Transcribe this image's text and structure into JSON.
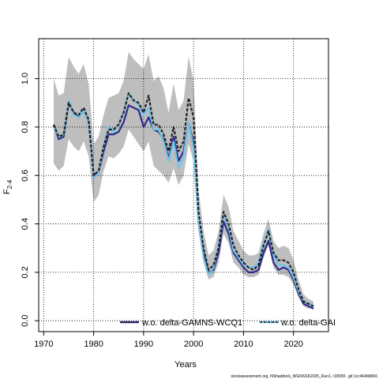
{
  "chart_data": {
    "type": "line",
    "xlabel": "Years",
    "ylabel_main": "F",
    "ylabel_sub": "2-4",
    "xlim": [
      1969,
      2027
    ],
    "ylim": [
      -0.045,
      1.165
    ],
    "xticks": [
      "1970",
      "1980",
      "1990",
      "2000",
      "2010",
      "2020"
    ],
    "yticks": [
      "0.0",
      "0.2",
      "0.4",
      "0.6",
      "0.8",
      "1.0"
    ],
    "grid": true,
    "legend_position": "bottom-right",
    "footer": "stockassessment.org, NShaddock_WGNSSK2025_Run1, r18099 , git:1cc464b8066",
    "colors": {
      "band": "#bebebe",
      "series1": "#2e2a8a",
      "series2": "#222222",
      "series3": "#6ec5e8"
    },
    "series": [
      {
        "name": "w.o. delta-GAMNS-WCQ1",
        "x": [
          1972,
          1973,
          1974,
          1975,
          1976,
          1977,
          1978,
          1979,
          1980,
          1981,
          1982,
          1983,
          1984,
          1985,
          1986,
          1987,
          1988,
          1989,
          1990,
          1991,
          1992,
          1993,
          1994,
          1995,
          1996,
          1997,
          1998,
          1999,
          2000,
          2001,
          2002,
          2003,
          2004,
          2005,
          2006,
          2007,
          2008,
          2009,
          2010,
          2011,
          2012,
          2013,
          2014,
          2015,
          2016,
          2017,
          2018,
          2019,
          2020,
          2021,
          2022,
          2023,
          2024
        ],
        "values": [
          0.81,
          0.75,
          0.76,
          0.9,
          0.86,
          0.84,
          0.87,
          0.82,
          0.6,
          0.61,
          0.7,
          0.77,
          0.77,
          0.78,
          0.82,
          0.89,
          0.88,
          0.87,
          0.8,
          0.84,
          0.79,
          0.78,
          0.75,
          0.67,
          0.76,
          0.66,
          0.7,
          0.82,
          0.73,
          0.4,
          0.28,
          0.2,
          0.21,
          0.28,
          0.41,
          0.36,
          0.28,
          0.25,
          0.22,
          0.2,
          0.2,
          0.21,
          0.28,
          0.33,
          0.24,
          0.21,
          0.22,
          0.21,
          0.17,
          0.11,
          0.07,
          0.06,
          0.05
        ]
      },
      {
        "name": "",
        "x": [
          1972,
          1973,
          1974,
          1975,
          1976,
          1977,
          1978,
          1979,
          1980,
          1981,
          1982,
          1983,
          1984,
          1985,
          1986,
          1987,
          1988,
          1989,
          1990,
          1991,
          1992,
          1993,
          1994,
          1995,
          1996,
          1997,
          1998,
          1999,
          2000,
          2001,
          2002,
          2003,
          2004,
          2005,
          2006,
          2007,
          2008,
          2009,
          2010,
          2011,
          2012,
          2013,
          2014,
          2015,
          2016,
          2017,
          2018,
          2019,
          2020,
          2021,
          2022,
          2023,
          2024
        ],
        "values": [
          0.81,
          0.76,
          0.77,
          0.9,
          0.86,
          0.85,
          0.88,
          0.83,
          0.6,
          0.62,
          0.72,
          0.79,
          0.79,
          0.81,
          0.86,
          0.94,
          0.91,
          0.9,
          0.86,
          0.93,
          0.81,
          0.81,
          0.77,
          0.7,
          0.8,
          0.7,
          0.74,
          0.92,
          0.84,
          0.45,
          0.3,
          0.21,
          0.23,
          0.3,
          0.45,
          0.4,
          0.31,
          0.27,
          0.24,
          0.22,
          0.21,
          0.23,
          0.31,
          0.37,
          0.28,
          0.25,
          0.25,
          0.24,
          0.2,
          0.13,
          0.08,
          0.07,
          0.06
        ]
      },
      {
        "name": "w.o. delta-GAI",
        "x": [
          1972,
          1973,
          1974,
          1975,
          1976,
          1977,
          1978,
          1979,
          1980,
          1981,
          1982,
          1983,
          1984,
          1985,
          1986,
          1987,
          1988,
          1989,
          1990,
          1991,
          1992,
          1993,
          1994,
          1995,
          1996,
          1997,
          1998,
          1999,
          2000,
          2001,
          2002,
          2003,
          2004,
          2005,
          2006,
          2007,
          2008,
          2009,
          2010,
          2011,
          2012,
          2013,
          2014,
          2015,
          2016,
          2017,
          2018,
          2019,
          2020,
          2021,
          2022,
          2023,
          2024
        ],
        "values": [
          0.8,
          0.76,
          0.77,
          0.91,
          0.85,
          0.84,
          0.87,
          0.82,
          0.59,
          0.61,
          0.72,
          0.8,
          0.78,
          0.81,
          0.86,
          0.94,
          0.91,
          0.89,
          0.85,
          0.88,
          0.79,
          0.79,
          0.74,
          0.66,
          0.74,
          0.63,
          0.68,
          0.82,
          0.71,
          0.4,
          0.26,
          0.19,
          0.22,
          0.31,
          0.44,
          0.39,
          0.29,
          0.26,
          0.23,
          0.22,
          0.22,
          0.24,
          0.32,
          0.38,
          0.27,
          0.23,
          0.23,
          0.22,
          0.18,
          0.12,
          0.08,
          0.07,
          0.06
        ]
      }
    ],
    "band": {
      "x": [
        1972,
        1973,
        1974,
        1975,
        1976,
        1977,
        1978,
        1979,
        1980,
        1981,
        1982,
        1983,
        1984,
        1985,
        1986,
        1987,
        1988,
        1989,
        1990,
        1991,
        1992,
        1993,
        1994,
        1995,
        1996,
        1997,
        1998,
        1999,
        2000,
        2001,
        2002,
        2003,
        2004,
        2005,
        2006,
        2007,
        2008,
        2009,
        2010,
        2011,
        2012,
        2013,
        2014,
        2015,
        2016,
        2017,
        2018,
        2019,
        2020,
        2021,
        2022,
        2023,
        2024
      ],
      "lower": [
        0.65,
        0.62,
        0.64,
        0.75,
        0.72,
        0.7,
        0.74,
        0.68,
        0.49,
        0.52,
        0.62,
        0.68,
        0.67,
        0.69,
        0.72,
        0.79,
        0.76,
        0.73,
        0.7,
        0.74,
        0.64,
        0.62,
        0.6,
        0.57,
        0.63,
        0.56,
        0.6,
        0.73,
        0.66,
        0.37,
        0.24,
        0.17,
        0.18,
        0.24,
        0.36,
        0.32,
        0.24,
        0.22,
        0.19,
        0.18,
        0.18,
        0.19,
        0.26,
        0.31,
        0.22,
        0.19,
        0.19,
        0.18,
        0.15,
        0.1,
        0.06,
        0.05,
        0.05
      ],
      "upper": [
        1.0,
        0.93,
        0.94,
        1.09,
        1.05,
        1.02,
        1.06,
        0.98,
        0.73,
        0.76,
        0.85,
        0.92,
        0.93,
        0.94,
        0.99,
        1.11,
        1.08,
        1.06,
        1.04,
        1.1,
        0.99,
        1.01,
        0.96,
        0.86,
        0.98,
        0.87,
        0.91,
        1.09,
        0.99,
        0.54,
        0.37,
        0.27,
        0.29,
        0.37,
        0.52,
        0.47,
        0.37,
        0.33,
        0.29,
        0.27,
        0.27,
        0.28,
        0.36,
        0.42,
        0.33,
        0.3,
        0.31,
        0.3,
        0.25,
        0.17,
        0.11,
        0.09,
        0.08
      ]
    }
  }
}
